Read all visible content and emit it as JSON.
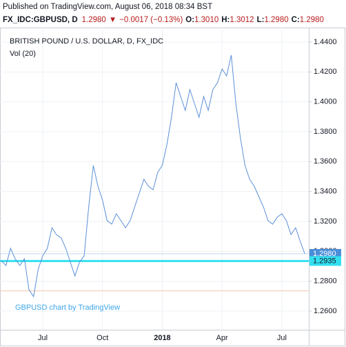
{
  "header": {
    "published": "Published on TradingView.com, August 06, 2018 08:34 BST",
    "symbol": "FX_IDC:GBPUSD, D",
    "last": "1.2980",
    "arrow": "▼",
    "change": "−0.0017 (−0.13%)",
    "o_label": "O:",
    "open": "1.3010",
    "h_label": "H:",
    "high": "1.3012",
    "l_label": "L:",
    "low": "1.2980",
    "c_label": "C:",
    "close": "1.2980"
  },
  "chart_data": {
    "type": "line",
    "title": "BRITISH POUND / U.S. DOLLAR, D, FX_IDC",
    "subtitle": "Vol (20)",
    "annotation": "GBPUSD chart by TradingView",
    "categories": [
      null,
      null,
      null,
      null,
      null,
      null,
      null,
      null,
      null,
      "Jul",
      null,
      null,
      null,
      null,
      null,
      null,
      null,
      null,
      null,
      null,
      null,
      null,
      "Oct",
      null,
      null,
      null,
      null,
      null,
      null,
      null,
      null,
      null,
      null,
      null,
      null,
      "2018",
      null,
      null,
      null,
      null,
      null,
      null,
      null,
      null,
      null,
      null,
      null,
      null,
      "Apr",
      null,
      null,
      null,
      null,
      null,
      null,
      null,
      null,
      null,
      null,
      null,
      null,
      "Jul",
      null,
      null,
      null,
      null,
      null
    ],
    "series": [
      {
        "name": "GBPUSD",
        "color": "#5b8fd6",
        "values": [
          1.2937,
          1.2905,
          1.302,
          1.295,
          1.2905,
          1.295,
          1.2743,
          1.2697,
          1.288,
          1.297,
          1.302,
          1.3158,
          1.311,
          1.309,
          1.302,
          1.2928,
          1.2835,
          1.2928,
          1.297,
          1.3297,
          1.3574,
          1.3435,
          1.3343,
          1.3205,
          1.3182,
          1.3251,
          1.3205,
          1.3158,
          1.3205,
          1.3297,
          1.3389,
          1.3482,
          1.3435,
          1.3412,
          1.3528,
          1.3574,
          1.3712,
          1.3897,
          1.4128,
          1.4036,
          1.3943,
          1.4082,
          1.3989,
          1.3897,
          1.4036,
          1.3943,
          1.4082,
          1.4128,
          1.422,
          1.4174,
          1.4313,
          1.3989,
          1.3758,
          1.3574,
          1.3482,
          1.3435,
          1.3366,
          1.3297,
          1.3205,
          1.3182,
          1.3228,
          1.3251,
          1.3205,
          1.3112,
          1.3158,
          1.3066,
          1.2983
        ]
      }
    ],
    "ylim": [
      1.2475,
      1.4497
    ],
    "yticks": [
      {
        "value": 1.26,
        "label": "1.2600"
      },
      {
        "value": 1.28,
        "label": "1.2800"
      },
      {
        "value": 1.3,
        "label": "1.3000"
      },
      {
        "value": 1.32,
        "label": "1.3200"
      },
      {
        "value": 1.34,
        "label": "1.3400"
      },
      {
        "value": 1.36,
        "label": "1.3600"
      },
      {
        "value": 1.38,
        "label": "1.3800"
      },
      {
        "value": 1.4,
        "label": "1.4000"
      },
      {
        "value": 1.42,
        "label": "1.4200"
      },
      {
        "value": 1.44,
        "label": "1.4400"
      }
    ],
    "hlines": [
      {
        "value": 1.2935,
        "label": "1.2935",
        "color": "#33e0f0"
      },
      {
        "value": 1.2735,
        "color": "#f5c4b0"
      }
    ],
    "grid": true
  }
}
